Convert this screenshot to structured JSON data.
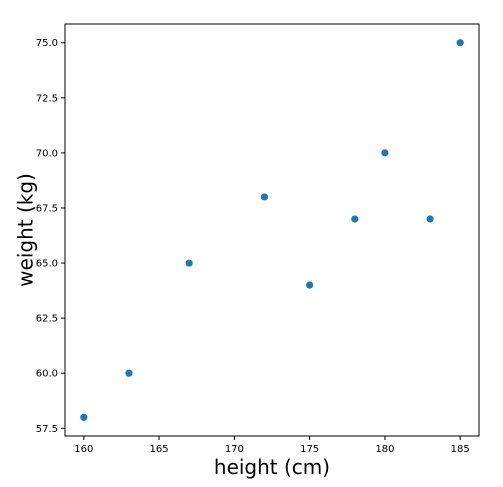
{
  "chart_data": {
    "type": "scatter",
    "title": "",
    "xlabel": "height (cm)",
    "ylabel": "weight (kg)",
    "xlim": [
      158.75,
      186.25
    ],
    "ylim": [
      57.15,
      75.85
    ],
    "xticks": [
      160,
      165,
      170,
      175,
      180,
      185
    ],
    "xtick_labels": [
      "160",
      "165",
      "170",
      "175",
      "180",
      "185"
    ],
    "yticks": [
      57.5,
      60.0,
      62.5,
      65.0,
      67.5,
      70.0,
      72.5,
      75.0
    ],
    "ytick_labels": [
      "57.5",
      "60.0",
      "62.5",
      "65.0",
      "67.5",
      "70.0",
      "72.5",
      "75.0"
    ],
    "grid": false,
    "marker_color": "#1f77b4",
    "series": [
      {
        "x": [
          160,
          163,
          167,
          172,
          175,
          178,
          180,
          183,
          185
        ],
        "y": [
          58,
          60,
          65,
          68,
          64,
          67,
          70,
          67,
          75
        ]
      }
    ]
  }
}
